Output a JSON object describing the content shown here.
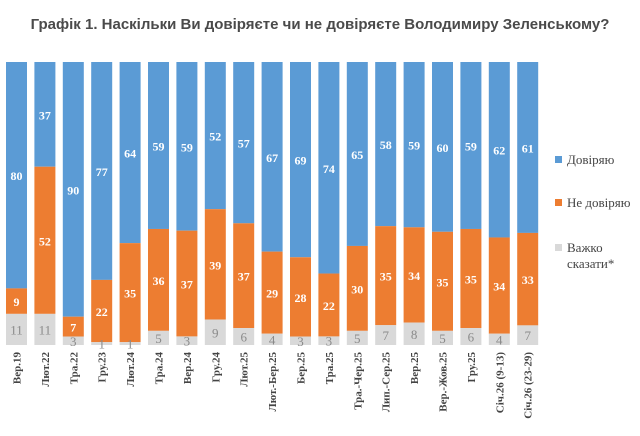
{
  "title": "Графік 1. Наскільки Ви довіряєте чи не довіряєте Володимиру Зеленському?",
  "chart_data": {
    "type": "bar",
    "stacked": true,
    "title": "Графік 1. Наскільки Ви довіряєте чи не довіряєте Володимиру Зеленському?",
    "categories": [
      "Вер.19",
      "Лют.22",
      "Тра.22",
      "Гру.23",
      "Лют.24",
      "Тра.24",
      "Вер.24",
      "Гру.24",
      "Лют.25",
      "Лют.-Бер.25",
      "Бер.25",
      "Тра.25",
      "Тра.-Чер.25",
      "Лип.-Сер.25",
      "Вер.25",
      "Вер.-Жов.25",
      "Гру.25",
      "Січ.26 (9-13)",
      "Січ.26 (23-29)"
    ],
    "series": [
      {
        "name": "Довіряю",
        "color": "#5b9bd5",
        "values": [
          80,
          37,
          90,
          77,
          64,
          59,
          59,
          52,
          57,
          67,
          69,
          74,
          65,
          58,
          59,
          60,
          59,
          62,
          61
        ]
      },
      {
        "name": "Не довіряю",
        "color": "#ed7d31",
        "values": [
          9,
          52,
          7,
          22,
          35,
          36,
          37,
          39,
          37,
          29,
          28,
          22,
          30,
          35,
          34,
          35,
          35,
          34,
          33
        ]
      },
      {
        "name": "Важко сказати*",
        "color": "#d9d9d9",
        "values": [
          11,
          11,
          3,
          1,
          1,
          5,
          3,
          9,
          6,
          4,
          3,
          3,
          5,
          7,
          8,
          5,
          6,
          4,
          7
        ]
      }
    ],
    "legend": "right",
    "grid": false
  }
}
